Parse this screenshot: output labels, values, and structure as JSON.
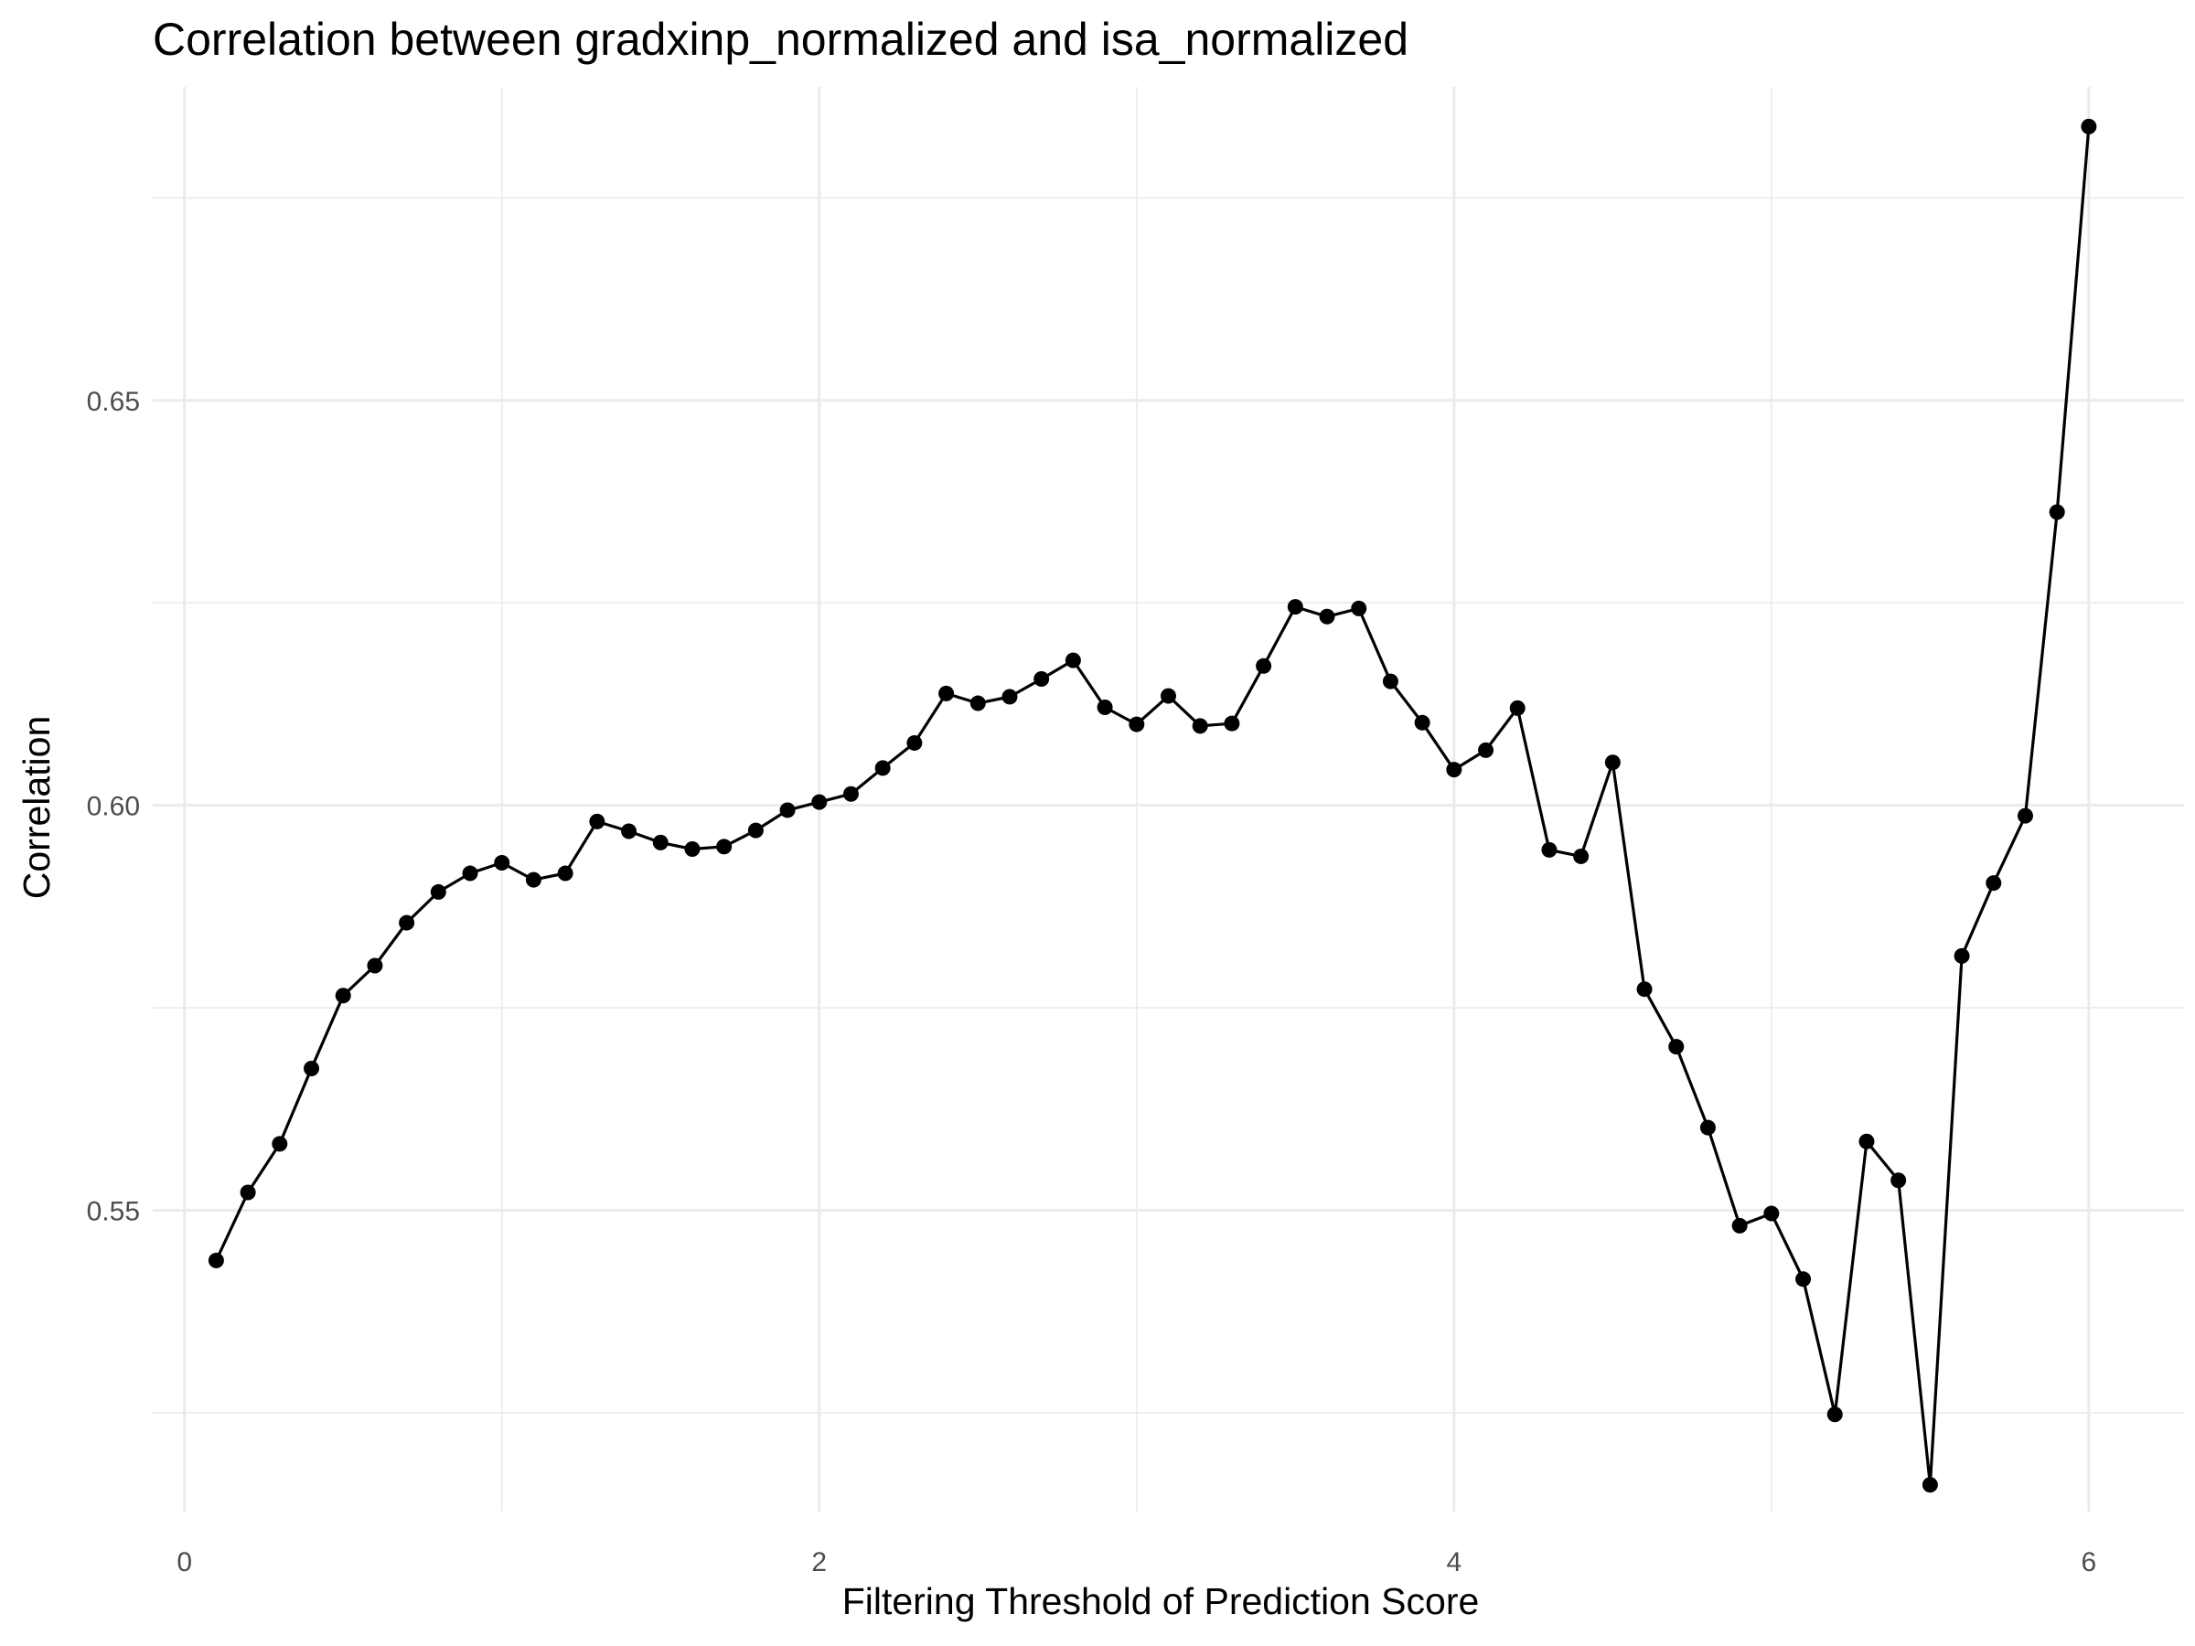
{
  "chart_data": {
    "type": "line",
    "title": "Correlation between gradxinp_normalized and isa_normalized",
    "xlabel": "Filtering Threshold of Prediction Score",
    "ylabel": "Correlation",
    "xlim": [
      -0.1,
      6.3
    ],
    "ylim": [
      0.5128,
      0.6887
    ],
    "x_ticks": [
      0,
      2,
      4,
      6
    ],
    "x_tick_labels": [
      "0",
      "2",
      "4",
      "6"
    ],
    "y_ticks": [
      0.55,
      0.6,
      0.65
    ],
    "y_tick_labels": [
      "0.55",
      "0.60",
      "0.65"
    ],
    "x_minor_ticks": [
      1,
      3,
      5
    ],
    "y_minor_ticks": [
      0.525,
      0.575,
      0.625,
      0.675
    ],
    "grid": true,
    "legend": "none",
    "series": [
      {
        "color": "#000000",
        "x": [
          0.1,
          0.2,
          0.3,
          0.4,
          0.5,
          0.6,
          0.7,
          0.8,
          0.9,
          1.0,
          1.1,
          1.2,
          1.3,
          1.4,
          1.5,
          1.6,
          1.7,
          1.8,
          1.9,
          2.0,
          2.1,
          2.2,
          2.3,
          2.4,
          2.5,
          2.6,
          2.7,
          2.8,
          2.9,
          3.0,
          3.1,
          3.2,
          3.3,
          3.4,
          3.5,
          3.6,
          3.7,
          3.8,
          3.9,
          4.0,
          4.1,
          4.2,
          4.3,
          4.4,
          4.5,
          4.6,
          4.7,
          4.8,
          4.9,
          5.0,
          5.1,
          5.2,
          5.3,
          5.4,
          5.5,
          5.6,
          5.7,
          5.8,
          5.9,
          6.0
        ],
        "y": [
          0.5438,
          0.5522,
          0.5582,
          0.5675,
          0.5765,
          0.5802,
          0.5855,
          0.5893,
          0.5916,
          0.5929,
          0.5908,
          0.5916,
          0.598,
          0.5968,
          0.5954,
          0.5946,
          0.5949,
          0.5969,
          0.5994,
          0.6004,
          0.6014,
          0.6046,
          0.6077,
          0.6138,
          0.6126,
          0.6134,
          0.6156,
          0.6179,
          0.6121,
          0.61,
          0.6135,
          0.6098,
          0.6101,
          0.6172,
          0.6245,
          0.6233,
          0.6243,
          0.6153,
          0.6102,
          0.6044,
          0.6068,
          0.612,
          0.5945,
          0.5937,
          0.6053,
          0.5773,
          0.5702,
          0.5602,
          0.5481,
          0.5496,
          0.5415,
          0.5248,
          0.5585,
          0.5537,
          0.5161,
          0.5814,
          0.5904,
          0.5987,
          0.6362,
          0.6838
        ]
      }
    ]
  }
}
